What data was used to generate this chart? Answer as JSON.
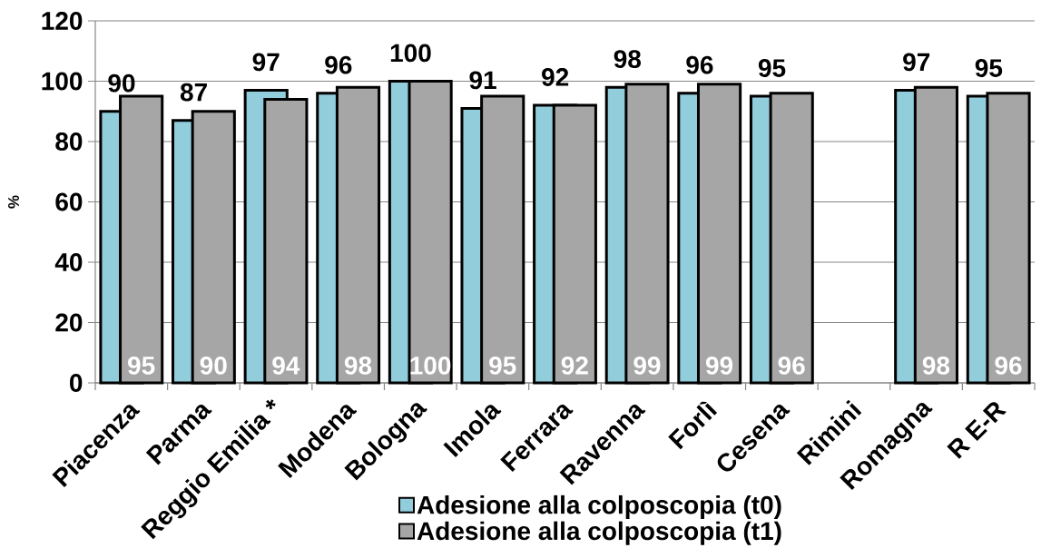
{
  "chart_data": {
    "type": "bar",
    "ylabel": "%",
    "categories": [
      "Piacenza",
      "Parma",
      "Reggio Emilia *",
      "Modena",
      "Bologna",
      "Imola",
      "Ferrara",
      "Ravenna",
      "Forlì",
      "Cesena",
      "Rimini",
      "Romagna",
      "R E-R"
    ],
    "series": [
      {
        "name": "Adesione alla colposcopia (t0)",
        "color": "#92cddc",
        "values": [
          90,
          87,
          97,
          96,
          100,
          91,
          92,
          98,
          96,
          95,
          null,
          97,
          95
        ]
      },
      {
        "name": "Adesione alla colposcopia (t1)",
        "color": "#a6a6a6",
        "values": [
          95,
          90,
          94,
          98,
          100,
          95,
          92,
          99,
          99,
          96,
          null,
          98,
          96
        ]
      }
    ],
    "ylim": [
      0,
      120
    ],
    "yticks": [
      0,
      20,
      40,
      60,
      80,
      100,
      120
    ],
    "grid": "y",
    "legend": "bottom",
    "data_labels": true
  }
}
